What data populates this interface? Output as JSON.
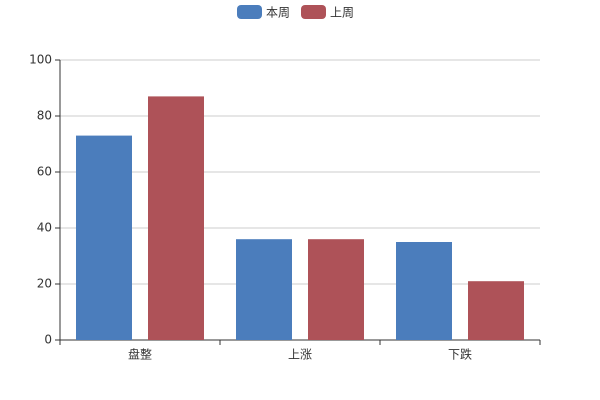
{
  "chart_data": {
    "type": "bar",
    "categories": [
      "盘整",
      "上涨",
      "下跌"
    ],
    "series": [
      {
        "name": "本周",
        "color": "#4b7dbc",
        "values": [
          73,
          36,
          35
        ]
      },
      {
        "name": "上周",
        "color": "#ae5258",
        "values": [
          87,
          36,
          21
        ]
      }
    ],
    "ylim": [
      0,
      100
    ],
    "yticks": [
      0,
      20,
      40,
      60,
      80,
      100
    ],
    "grid": true,
    "legend": "top"
  }
}
